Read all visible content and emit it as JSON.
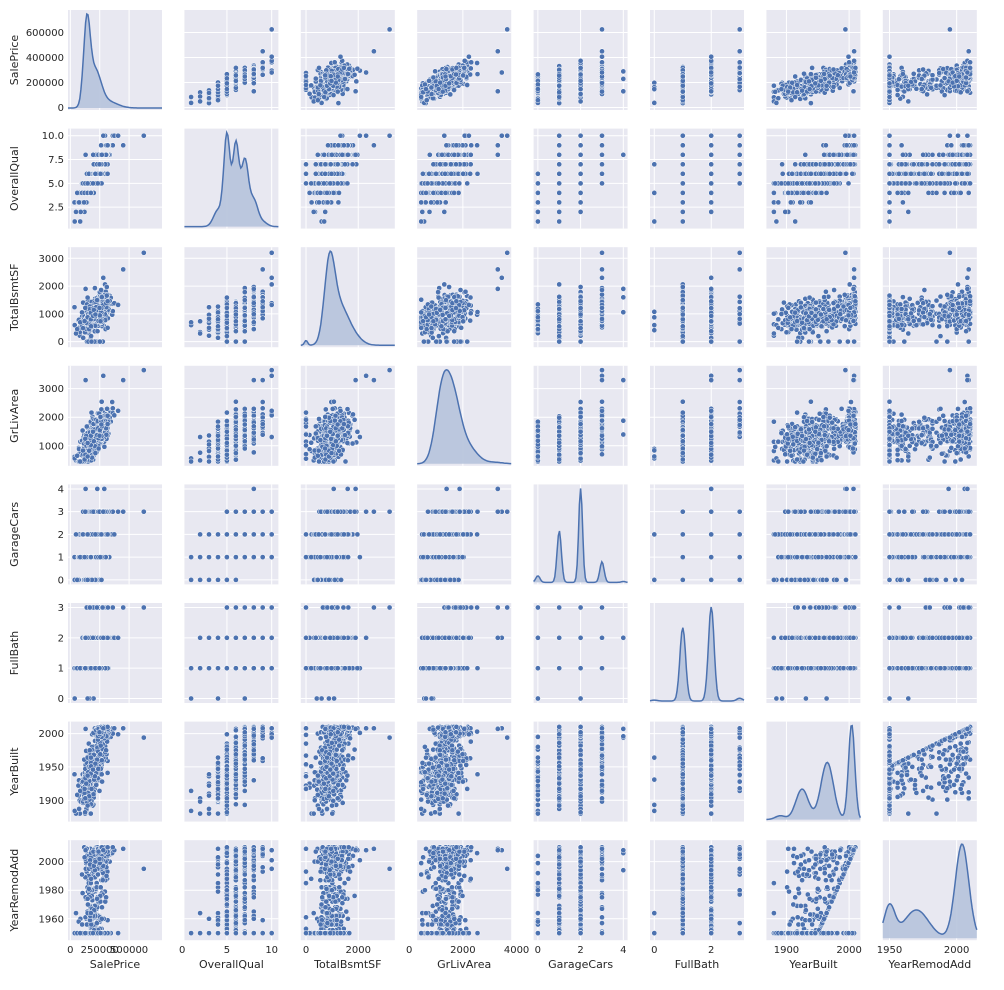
{
  "chart_data": {
    "type": "pairplot",
    "grid": true,
    "style": {
      "panel_background": "#e8e8f1",
      "grid_color": "#ffffff",
      "point_color": "#4c72b0",
      "point_edge": "#ffffff",
      "kde_line": "#4c72b0",
      "kde_fill": "#b6c3dc"
    },
    "variables": [
      {
        "name": "SalePrice",
        "lim": [
          -20000,
          780000
        ],
        "ticks": [
          0,
          200000,
          400000,
          600000
        ],
        "tick_labels_y": [
          "0",
          "200000",
          "400000",
          "600000"
        ],
        "tick_labels_x": [
          "0",
          "250000",
          "500000"
        ],
        "ticks_x": [
          0,
          250000,
          500000
        ]
      },
      {
        "name": "OverallQual",
        "lim": [
          0.25,
          10.75
        ],
        "ticks": [
          2.5,
          5.0,
          7.5,
          10.0
        ],
        "tick_labels_y": [
          "2.5",
          "5.0",
          "7.5",
          "10.0"
        ],
        "tick_labels_x": [
          "0",
          "5",
          "10"
        ],
        "ticks_x": [
          0,
          5,
          10
        ]
      },
      {
        "name": "TotalBsmtSF",
        "lim": [
          -200,
          3400
        ],
        "ticks": [
          0,
          1000,
          2000,
          3000
        ],
        "tick_labels_y": [
          "0",
          "1000",
          "2000",
          "3000"
        ],
        "tick_labels_x": [
          "0",
          "2000"
        ],
        "ticks_x": [
          0,
          2000
        ]
      },
      {
        "name": "GrLivArea",
        "lim": [
          300,
          3800
        ],
        "ticks": [
          1000,
          2000,
          3000
        ],
        "tick_labels_y": [
          "1000",
          "2000",
          "3000"
        ],
        "tick_labels_x": [
          "0",
          "2000",
          "4000"
        ],
        "ticks_x": [
          0,
          2000,
          4000
        ]
      },
      {
        "name": "GarageCars",
        "lim": [
          -0.2,
          4.2
        ],
        "ticks": [
          0,
          1,
          2,
          3,
          4
        ],
        "tick_labels_y": [
          "0",
          "1",
          "2",
          "3",
          "4"
        ],
        "tick_labels_x": [
          "0",
          "2",
          "4"
        ],
        "ticks_x": [
          0,
          2,
          4
        ]
      },
      {
        "name": "FullBath",
        "lim": [
          -0.15,
          3.15
        ],
        "ticks": [
          0,
          1,
          2,
          3
        ],
        "tick_labels_y": [
          "0",
          "1",
          "2",
          "3"
        ],
        "tick_labels_x": [
          "0",
          "2"
        ],
        "ticks_x": [
          0,
          2
        ]
      },
      {
        "name": "YearBuilt",
        "lim": [
          1868,
          2018
        ],
        "ticks": [
          1900,
          1950,
          2000
        ],
        "tick_labels_y": [
          "1900",
          "1950",
          "2000"
        ],
        "tick_labels_x": [
          "1900",
          "2000"
        ],
        "ticks_x": [
          1900,
          2000
        ]
      },
      {
        "name": "YearRemodAdd",
        "lim": [
          1945,
          2015
        ],
        "ticks": [
          1960,
          1980,
          2000
        ],
        "tick_labels_y": [
          "1960",
          "1980",
          "2000"
        ],
        "tick_labels_x": [
          "1950",
          "2000"
        ],
        "ticks_x": [
          1950,
          2000
        ]
      }
    ],
    "diagonal_kde": [
      {
        "variable": "SalePrice",
        "peaks": [
          [
            140000,
            1.0,
            28000
          ],
          [
            210000,
            0.45,
            50000
          ],
          [
            320000,
            0.08,
            80000
          ]
        ]
      },
      {
        "variable": "OverallQual",
        "peaks": [
          [
            5,
            1.0,
            0.35
          ],
          [
            6,
            0.9,
            0.35
          ],
          [
            7,
            0.72,
            0.4
          ],
          [
            8,
            0.28,
            0.45
          ],
          [
            4,
            0.18,
            0.5
          ],
          [
            9,
            0.05,
            0.5
          ]
        ]
      },
      {
        "variable": "TotalBsmtSF",
        "peaks": [
          [
            900,
            1.0,
            200
          ],
          [
            1300,
            0.45,
            300
          ],
          [
            1800,
            0.12,
            300
          ],
          [
            0,
            0.06,
            60
          ]
        ]
      },
      {
        "variable": "GrLivArea",
        "peaks": [
          [
            1200,
            0.8,
            250
          ],
          [
            1600,
            0.95,
            300
          ],
          [
            2200,
            0.22,
            350
          ],
          [
            3200,
            0.02,
            300
          ]
        ]
      },
      {
        "variable": "GarageCars",
        "peaks": [
          [
            2,
            1.0,
            0.09
          ],
          [
            1,
            0.55,
            0.1
          ],
          [
            3,
            0.22,
            0.1
          ],
          [
            0,
            0.07,
            0.1
          ],
          [
            4,
            0.01,
            0.1
          ]
        ]
      },
      {
        "variable": "FullBath",
        "peaks": [
          [
            2,
            1.0,
            0.1
          ],
          [
            1,
            0.78,
            0.1
          ],
          [
            3,
            0.03,
            0.1
          ],
          [
            0,
            0.01,
            0.1
          ]
        ]
      },
      {
        "variable": "YearBuilt",
        "peaks": [
          [
            2004,
            1.0,
            5
          ],
          [
            1965,
            0.6,
            10
          ],
          [
            1925,
            0.32,
            10
          ],
          [
            1890,
            0.04,
            8
          ]
        ]
      },
      {
        "variable": "YearRemodAdd",
        "peaks": [
          [
            2004,
            1.0,
            5
          ],
          [
            1950,
            0.34,
            4
          ],
          [
            1970,
            0.3,
            9
          ]
        ]
      }
    ]
  }
}
